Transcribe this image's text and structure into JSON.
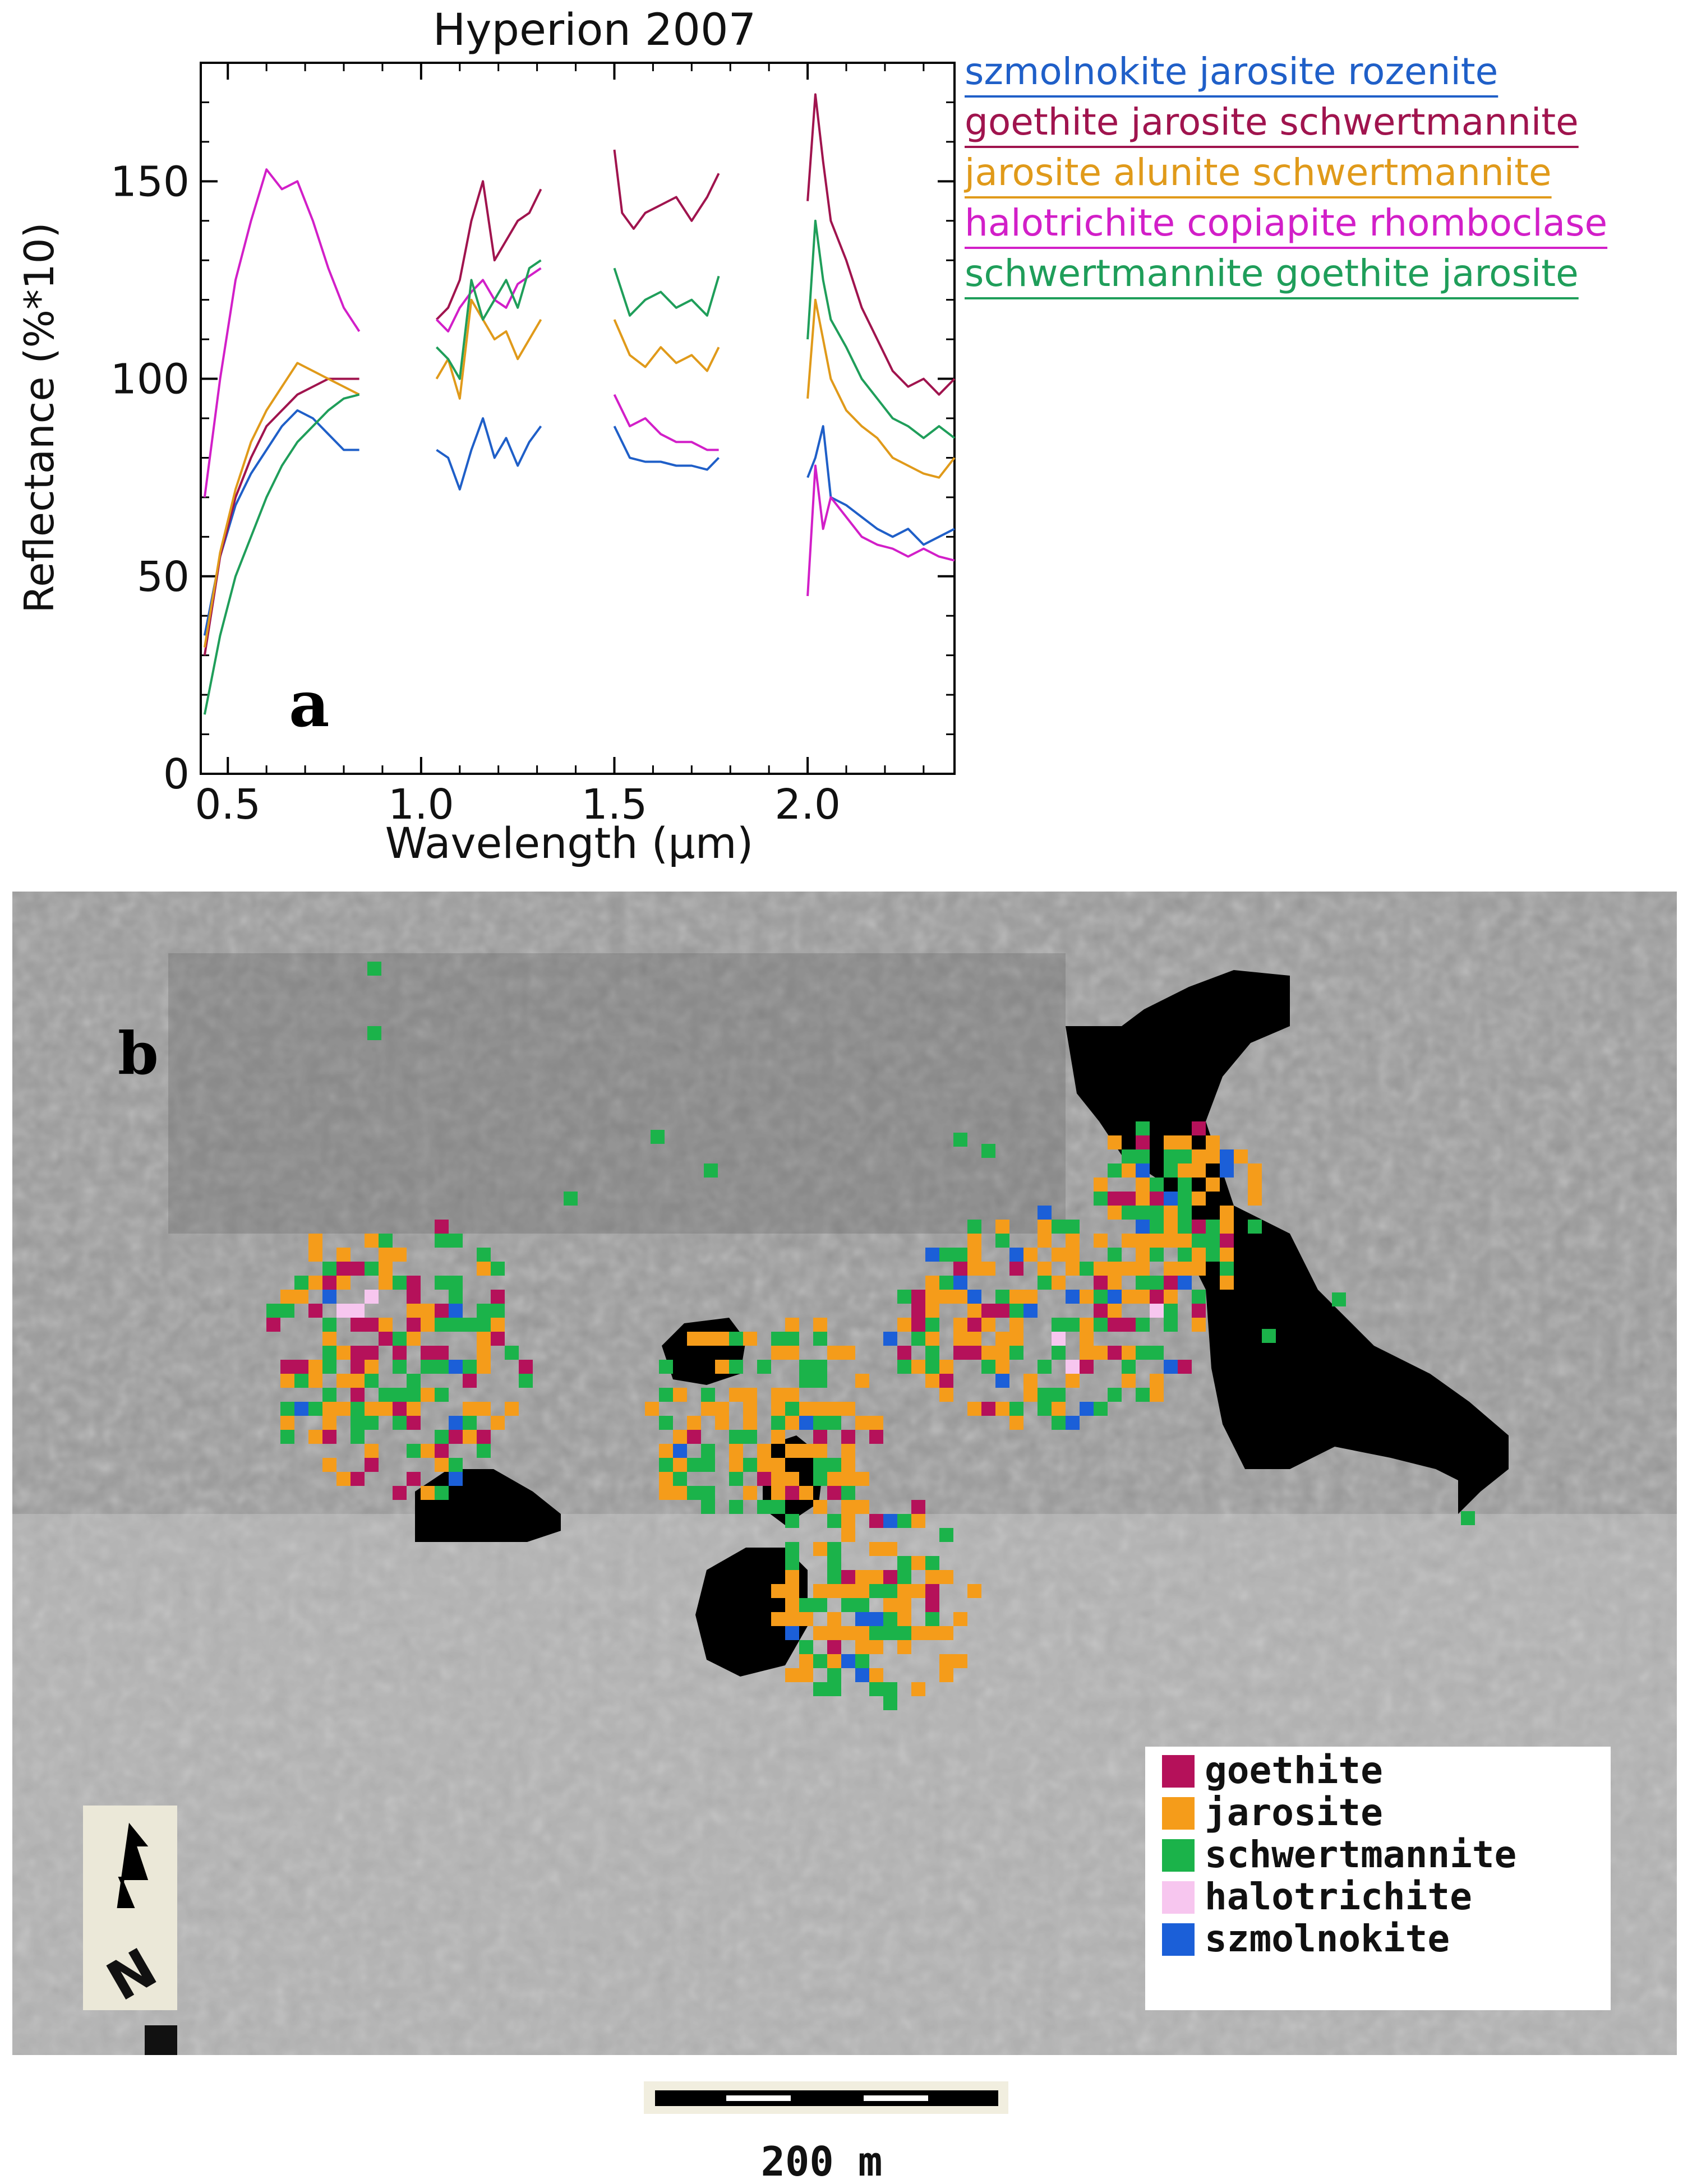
{
  "panel_a_letter": "a",
  "panel_b_letter": "b",
  "chart_data": {
    "type": "line",
    "title": "Hyperion 2007",
    "xlabel": "Wavelength (µm)",
    "ylabel": "Reflectance (%*10)",
    "xlim": [
      0.43,
      2.38
    ],
    "ylim": [
      0,
      180
    ],
    "xticks": [
      0.5,
      1.0,
      1.5,
      2.0
    ],
    "xtick_labels": [
      "0.5",
      "1.0",
      "1.5",
      "2.0"
    ],
    "yticks": [
      0,
      50,
      100,
      150
    ],
    "ytick_labels": [
      "0",
      "50",
      "100",
      "150"
    ],
    "grid": false,
    "legend_position": "outside right",
    "series": [
      {
        "name": "szmolnokite jarosite rozenite",
        "color": "#1f5fc8",
        "segments": [
          {
            "x": [
              0.44,
              0.48,
              0.52,
              0.56,
              0.6,
              0.64,
              0.68,
              0.72,
              0.76,
              0.8,
              0.84
            ],
            "y": [
              35,
              55,
              68,
              76,
              82,
              88,
              92,
              90,
              86,
              82,
              82
            ]
          },
          {
            "x": [
              1.04,
              1.07,
              1.1,
              1.13,
              1.16,
              1.19,
              1.22,
              1.25,
              1.28,
              1.31
            ],
            "y": [
              82,
              80,
              72,
              82,
              90,
              80,
              85,
              78,
              84,
              88
            ]
          },
          {
            "x": [
              1.5,
              1.54,
              1.58,
              1.62,
              1.66,
              1.7,
              1.74,
              1.77
            ],
            "y": [
              88,
              80,
              79,
              79,
              78,
              78,
              77,
              80
            ]
          },
          {
            "x": [
              2.0,
              2.02,
              2.04,
              2.06,
              2.1,
              2.14,
              2.18,
              2.22,
              2.26,
              2.3,
              2.34,
              2.38
            ],
            "y": [
              75,
              80,
              88,
              70,
              68,
              65,
              62,
              60,
              62,
              58,
              60,
              62
            ]
          }
        ]
      },
      {
        "name": "goethite jarosite schwertmannite",
        "color": "#a0144e",
        "segments": [
          {
            "x": [
              0.44,
              0.48,
              0.52,
              0.56,
              0.6,
              0.64,
              0.68,
              0.72,
              0.76,
              0.8,
              0.84
            ],
            "y": [
              30,
              55,
              70,
              80,
              88,
              92,
              96,
              98,
              100,
              100,
              100
            ]
          },
          {
            "x": [
              1.04,
              1.07,
              1.1,
              1.13,
              1.16,
              1.19,
              1.22,
              1.25,
              1.28,
              1.31
            ],
            "y": [
              115,
              118,
              125,
              140,
              150,
              130,
              135,
              140,
              142,
              148
            ]
          },
          {
            "x": [
              1.5,
              1.52,
              1.55,
              1.58,
              1.62,
              1.66,
              1.7,
              1.74,
              1.77
            ],
            "y": [
              158,
              142,
              138,
              142,
              144,
              146,
              140,
              146,
              152
            ]
          },
          {
            "x": [
              2.0,
              2.02,
              2.04,
              2.06,
              2.1,
              2.14,
              2.18,
              2.22,
              2.26,
              2.3,
              2.34,
              2.38
            ],
            "y": [
              145,
              172,
              155,
              140,
              130,
              118,
              110,
              102,
              98,
              100,
              96,
              100
            ]
          }
        ]
      },
      {
        "name": "jarosite alunite schwertmannite",
        "color": "#e09a1a",
        "segments": [
          {
            "x": [
              0.44,
              0.48,
              0.52,
              0.56,
              0.6,
              0.64,
              0.68,
              0.72,
              0.76,
              0.8,
              0.84
            ],
            "y": [
              32,
              56,
              72,
              84,
              92,
              98,
              104,
              102,
              100,
              98,
              96
            ]
          },
          {
            "x": [
              1.04,
              1.07,
              1.1,
              1.13,
              1.16,
              1.19,
              1.22,
              1.25,
              1.28,
              1.31
            ],
            "y": [
              100,
              105,
              95,
              120,
              115,
              110,
              112,
              105,
              110,
              115
            ]
          },
          {
            "x": [
              1.5,
              1.54,
              1.58,
              1.62,
              1.66,
              1.7,
              1.74,
              1.77
            ],
            "y": [
              115,
              106,
              103,
              108,
              104,
              106,
              102,
              108
            ]
          },
          {
            "x": [
              2.0,
              2.02,
              2.04,
              2.06,
              2.1,
              2.14,
              2.18,
              2.22,
              2.26,
              2.3,
              2.34,
              2.38
            ],
            "y": [
              95,
              120,
              110,
              100,
              92,
              88,
              85,
              80,
              78,
              76,
              75,
              80
            ]
          }
        ]
      },
      {
        "name": "halotrichite copiapite rhomboclase",
        "color": "#d21fc8",
        "segments": [
          {
            "x": [
              0.44,
              0.48,
              0.52,
              0.56,
              0.6,
              0.64,
              0.68,
              0.72,
              0.76,
              0.8,
              0.84
            ],
            "y": [
              70,
              100,
              125,
              140,
              153,
              148,
              150,
              140,
              128,
              118,
              112
            ]
          },
          {
            "x": [
              1.04,
              1.07,
              1.1,
              1.13,
              1.16,
              1.19,
              1.22,
              1.25,
              1.28,
              1.31
            ],
            "y": [
              115,
              112,
              118,
              122,
              125,
              120,
              118,
              124,
              126,
              128
            ]
          },
          {
            "x": [
              1.5,
              1.54,
              1.58,
              1.62,
              1.66,
              1.7,
              1.74,
              1.77
            ],
            "y": [
              96,
              88,
              90,
              86,
              84,
              84,
              82,
              82
            ]
          },
          {
            "x": [
              2.0,
              2.02,
              2.04,
              2.06,
              2.1,
              2.14,
              2.18,
              2.22,
              2.26,
              2.3,
              2.34,
              2.38
            ],
            "y": [
              45,
              78,
              62,
              70,
              65,
              60,
              58,
              57,
              55,
              57,
              55,
              54
            ]
          }
        ]
      },
      {
        "name": "schwertmannite goethite jarosite",
        "color": "#1f9e5a",
        "segments": [
          {
            "x": [
              0.44,
              0.48,
              0.52,
              0.56,
              0.6,
              0.64,
              0.68,
              0.72,
              0.76,
              0.8,
              0.84
            ],
            "y": [
              15,
              35,
              50,
              60,
              70,
              78,
              84,
              88,
              92,
              95,
              96
            ]
          },
          {
            "x": [
              1.04,
              1.07,
              1.1,
              1.13,
              1.16,
              1.19,
              1.22,
              1.25,
              1.28,
              1.31
            ],
            "y": [
              108,
              105,
              100,
              125,
              115,
              120,
              125,
              118,
              128,
              130
            ]
          },
          {
            "x": [
              1.5,
              1.54,
              1.58,
              1.62,
              1.66,
              1.7,
              1.74,
              1.77
            ],
            "y": [
              128,
              116,
              120,
              122,
              118,
              120,
              116,
              126
            ]
          },
          {
            "x": [
              2.0,
              2.02,
              2.04,
              2.06,
              2.1,
              2.14,
              2.18,
              2.22,
              2.26,
              2.3,
              2.34,
              2.38
            ],
            "y": [
              110,
              140,
              125,
              115,
              108,
              100,
              95,
              90,
              88,
              85,
              88,
              85
            ]
          }
        ]
      }
    ]
  },
  "map": {
    "north_label": "N",
    "scale_label": "200 m",
    "legend": [
      {
        "label": "goethite",
        "color": "#b5115a"
      },
      {
        "label": "jarosite",
        "color": "#f59c1a"
      },
      {
        "label": "schwertmannite",
        "color": "#1bb34a"
      },
      {
        "label": "halotrichite",
        "color": "#f7c6ef"
      },
      {
        "label": "szmolnokite",
        "color": "#1b5fd8"
      }
    ]
  }
}
